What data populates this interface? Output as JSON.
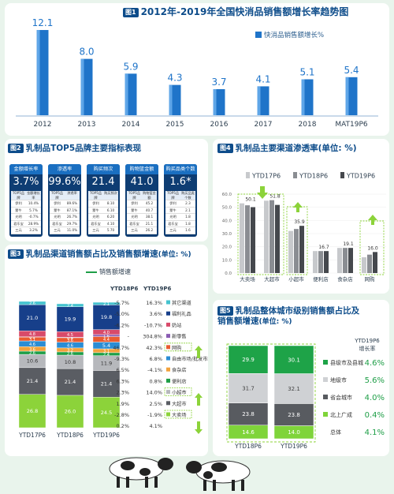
{
  "fig1": {
    "tag": "图1",
    "title": "2012年-2019年全国快消品销售额增长率趋势图",
    "legend": "快消品销售额增长%",
    "colors": {
      "bar": "#1f74c9",
      "bar_light": "#5fa6e8"
    },
    "chart_data": {
      "type": "bar",
      "categories": [
        "2012",
        "2013",
        "2014",
        "2015",
        "2016",
        "2017",
        "2018",
        "MAT19P6"
      ],
      "values": [
        12.1,
        8.0,
        5.9,
        4.3,
        3.7,
        4.1,
        5.1,
        5.4
      ],
      "value_labels": [
        "12.1",
        "8.0",
        "5.9",
        "4.3",
        "3.7",
        "4.1",
        "5.1",
        "5.4"
      ],
      "series_name": "快消品销售额增长%",
      "ylim": [
        0,
        13
      ]
    }
  },
  "fig2": {
    "tag": "图2",
    "title": "乳制品TOP5品牌主要指标表现",
    "cards": [
      {
        "label": "金额增长率",
        "value": "3.7%",
        "h1": "TOP5品牌",
        "h2": "金额增长率",
        "rows": [
          [
            "伊利",
            "10.4%"
          ],
          [
            "蒙牛",
            "5.7%"
          ],
          [
            "光明",
            "-0.7%"
          ],
          [
            "君乐宝",
            "28.9%"
          ],
          [
            "三元",
            "3.2%"
          ]
        ]
      },
      {
        "label": "渗透率",
        "value": "99.6%",
        "h1": "TOP5品牌",
        "h2": "渗透率",
        "rows": [
          [
            "伊利",
            "89.6%"
          ],
          [
            "蒙牛",
            "87.1%"
          ],
          [
            "光明",
            "26.7%"
          ],
          [
            "君乐宝",
            "29.7%"
          ],
          [
            "三元",
            "11.0%"
          ]
        ]
      },
      {
        "label": "购买频次",
        "value": "21.4",
        "h1": "TOP5品牌",
        "h2": "购买频次",
        "rows": [
          [
            "伊利",
            "8.10"
          ],
          [
            "蒙牛",
            "6.10"
          ],
          [
            "光明",
            "6.20"
          ],
          [
            "君乐宝",
            "4.10"
          ],
          [
            "三元",
            "5.70"
          ]
        ]
      },
      {
        "label": "购物篮金额",
        "value": "41.0",
        "h1": "TOP5品牌",
        "h2": "购物篮金额",
        "rows": [
          [
            "伊利",
            "45.2"
          ],
          [
            "蒙牛",
            "40.7"
          ],
          [
            "光明",
            "38.1"
          ],
          [
            "君乐宝",
            "21.1"
          ],
          [
            "三元",
            "26.2"
          ]
        ]
      },
      {
        "label": "购买品类个数",
        "value": "1.6*",
        "h1": "TOP5品牌",
        "h2": "购买品类个数",
        "rows": [
          [
            "伊利",
            "2.3"
          ],
          [
            "蒙牛",
            "2.1"
          ],
          [
            "光明",
            "1.8"
          ],
          [
            "君乐宝",
            "1.8"
          ],
          [
            "三元",
            "1.6"
          ]
        ]
      }
    ]
  },
  "fig3": {
    "tag": "图3",
    "title": "乳制品渠道销售额占比及销售额增速",
    "unit": "(单位: %)",
    "legend": "销售额增速",
    "growth_header_1": "YTD18P6",
    "growth_header_2": "YTD19P6",
    "chart_data": {
      "type": "bar",
      "stacked": true,
      "categories": [
        "YTD17P6",
        "YTD18P6",
        "YTD19P6"
      ],
      "series": [
        {
          "name": "大卖场",
          "color": "#8cd33a",
          "values": [
            26.8,
            26.0,
            24.5
          ]
        },
        {
          "name": "大超市",
          "color": "#5a5d63",
          "values": [
            21.4,
            21.4,
            21.4
          ]
        },
        {
          "name": "小超市",
          "color": "#b6b8bc",
          "values": [
            10.6,
            10.8,
            11.9
          ]
        },
        {
          "name": "便利店",
          "color": "#1e9e47",
          "values": [
            2.6,
            2.6,
            2.4
          ]
        },
        {
          "name": "食杂店",
          "color": "#f2a23c",
          "values": [
            3.6,
            3.2,
            3.1
          ]
        },
        {
          "name": "自由市场/批发市场",
          "color": "#2a8dd4",
          "values": [
            4.6,
            4.6,
            5.4
          ]
        },
        {
          "name": "网购",
          "color": "#ea5c30",
          "values": [
            3.1,
            3.6,
            4.4
          ]
        },
        {
          "name": "新零售",
          "color": "#8a5cb3",
          "values": [
            0.2,
            0.4,
            1.6
          ]
        },
        {
          "name": "奶站",
          "color": "#d84a6a",
          "values": [
            4.8,
            4.5,
            4.0
          ]
        },
        {
          "name": "福利礼品",
          "color": "#173f8a",
          "values": [
            21.0,
            19.9,
            19.8
          ]
        },
        {
          "name": "其它渠道",
          "color": "#45c3cf",
          "values": [
            2.6,
            2.4,
            2.1
          ]
        }
      ],
      "label_texts": [
        [
          "26.8",
          "21.4",
          "10.6",
          "2.6",
          "3.6",
          "4.6",
          "3.1",
          "0.2",
          "4.8",
          "21.0",
          "2.6"
        ],
        [
          "26.0",
          "21.4",
          "10.8",
          "2.6",
          "3.2",
          "4.6",
          "3.6",
          "0.4",
          "4.5",
          "19.9",
          "2.4"
        ],
        [
          "24.5",
          "21.4",
          "11.9",
          "2.4",
          "3.1",
          "5.4",
          "4.4",
          "1.6",
          "4.0",
          "19.8",
          "2.1"
        ]
      ],
      "growth": [
        {
          "name": "其它渠道",
          "v18": "-5.7%",
          "v19": "16.3%"
        },
        {
          "name": "福利礼品",
          "v18": "-5.0%",
          "v19": "3.6%"
        },
        {
          "name": "奶站",
          "v18": "-6.2%",
          "v19": "-10.7%"
        },
        {
          "name": "新零售",
          "v18": "-",
          "v19": "304.8%"
        },
        {
          "name": "网购",
          "v18": "46.7%",
          "v19": "42.3%"
        },
        {
          "name": "自由市场/批发市场",
          "v18": "-9.3%",
          "v19": "6.8%"
        },
        {
          "name": "食杂店",
          "v18": "6.5%",
          "v19": "-4.1%"
        },
        {
          "name": "便利店",
          "v18": "6.3%",
          "v19": "0.8%"
        },
        {
          "name": "小超市",
          "v18": "2.3%",
          "v19": "14.0%"
        },
        {
          "name": "大超市",
          "v18": "1.9%",
          "v19": "2.5%"
        },
        {
          "name": "大卖场",
          "v18": "-2.8%",
          "v19": "-1.9%"
        }
      ],
      "growth_extra": [
        "0.2%",
        "4.1%"
      ]
    }
  },
  "fig4": {
    "tag": "图4",
    "title": "乳制品主要渠道渗透率",
    "unit": "(单位: %)",
    "chart_data": {
      "type": "bar",
      "categories": [
        "大卖场",
        "大超市",
        "小超市",
        "便利店",
        "食杂店",
        "网购"
      ],
      "series": [
        {
          "name": "YTD17P6",
          "color": "#c7c9cc",
          "values": [
            53.0,
            55.0,
            32.0,
            16.7,
            19.1,
            12.0
          ]
        },
        {
          "name": "YTD18P6",
          "color": "#8a8d92",
          "values": [
            51.5,
            55.4,
            33.5,
            16.7,
            19.1,
            14.0
          ]
        },
        {
          "name": "YTD19P6",
          "color": "#45484d",
          "values": [
            50.1,
            51.8,
            35.9,
            16.7,
            19.1,
            16.0
          ]
        }
      ],
      "value_labels": [
        {
          "cat": 0,
          "text": "50.1"
        },
        {
          "cat": 1,
          "text": "51.8"
        },
        {
          "cat": 2,
          "text": "35.9"
        },
        {
          "cat": 3,
          "text": "16.7"
        },
        {
          "cat": 4,
          "text": "19.1"
        },
        {
          "cat": 5,
          "text": "16.0"
        }
      ],
      "yticks": [
        "60.0",
        "50.0",
        "40.0",
        "30.0",
        "20.0",
        "10.0",
        "0.0"
      ],
      "ylim": [
        0,
        60
      ]
    }
  },
  "fig5": {
    "tag": "图5",
    "title": "乳制品整体城市级别销售额占比及",
    "title2": "销售额增速",
    "unit": "(单位: %)",
    "growth_header": "YTD19P6",
    "growth_header2": "增长率",
    "chart_data": {
      "type": "bar",
      "stacked": true,
      "categories": [
        "YTD18P6",
        "YTD19P6"
      ],
      "series": [
        {
          "name": "北上广成",
          "color": "#7fd43a",
          "values": [
            14.6,
            14.0
          ]
        },
        {
          "name": "省会城市",
          "color": "#585b60",
          "values": [
            23.8,
            23.8
          ]
        },
        {
          "name": "地级市",
          "color": "#cfd1d4",
          "values": [
            31.7,
            32.1
          ]
        },
        {
          "name": "县级市及县城",
          "color": "#1ea348",
          "values": [
            29.9,
            30.1
          ]
        }
      ],
      "label_texts": [
        [
          "14.6",
          "23.8",
          "31.7",
          "29.9"
        ],
        [
          "14.0",
          "23.8",
          "32.1",
          "30.1"
        ]
      ],
      "growth": [
        {
          "name": "县级市及县城",
          "value": "4.6%"
        },
        {
          "name": "地级市",
          "value": "5.6%"
        },
        {
          "name": "省会城市",
          "value": "4.0%"
        },
        {
          "name": "北上广成",
          "value": "0.4%"
        },
        {
          "name": "总体",
          "value": "4.1%"
        }
      ]
    }
  }
}
